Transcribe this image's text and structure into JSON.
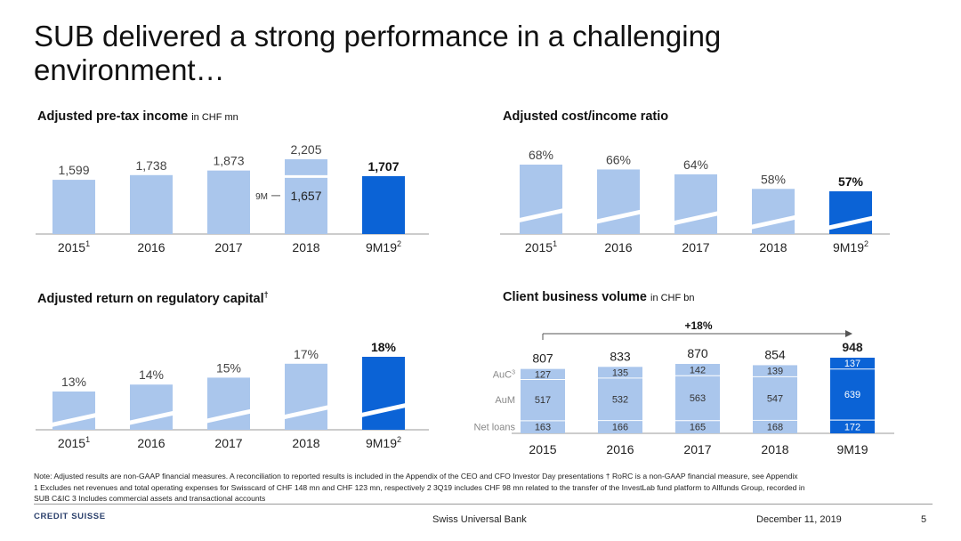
{
  "title": "SUB delivered a strong performance in a challenging environment…",
  "chart_data": [
    {
      "type": "bar",
      "title": "Adjusted pre-tax income",
      "unit": "in CHF mn",
      "categories": [
        "2015",
        "2016",
        "2017",
        "2018",
        "9M19"
      ],
      "category_superscripts": [
        "1",
        "",
        "",
        "",
        "2"
      ],
      "values": [
        1599,
        1738,
        1873,
        2205,
        1707
      ],
      "value_labels": [
        "1,599",
        "1,738",
        "1,873",
        "2,205",
        "1,707"
      ],
      "inner_marker": {
        "category": "2018",
        "label": "9M",
        "value": 1657,
        "value_label": "1,657"
      },
      "highlight_index": 4,
      "colors": {
        "bar": "#aac6ec",
        "highlight": "#0b63d6"
      }
    },
    {
      "type": "bar",
      "title": "Adjusted cost/income ratio",
      "categories": [
        "2015",
        "2016",
        "2017",
        "2018",
        "9M19"
      ],
      "category_superscripts": [
        "1",
        "",
        "",
        "",
        "2"
      ],
      "values": [
        68,
        66,
        64,
        58,
        57
      ],
      "value_labels": [
        "68%",
        "66%",
        "64%",
        "58%",
        "57%"
      ],
      "axis_break": true,
      "highlight_index": 4,
      "colors": {
        "bar": "#aac6ec",
        "highlight": "#0b63d6"
      }
    },
    {
      "type": "bar",
      "title": "Adjusted return on regulatory capital",
      "title_superscript": "†",
      "categories": [
        "2015",
        "2016",
        "2017",
        "2018",
        "9M19"
      ],
      "category_superscripts": [
        "1",
        "",
        "",
        "",
        "2"
      ],
      "values": [
        13,
        14,
        15,
        17,
        18
      ],
      "value_labels": [
        "13%",
        "14%",
        "15%",
        "17%",
        "18%"
      ],
      "axis_break": true,
      "highlight_index": 4,
      "colors": {
        "bar": "#aac6ec",
        "highlight": "#0b63d6"
      }
    },
    {
      "type": "bar",
      "stacked": true,
      "title": "Client business volume",
      "unit": "in CHF bn",
      "categories": [
        "2015",
        "2016",
        "2017",
        "2018",
        "9M19"
      ],
      "series": [
        {
          "name": "Net loans",
          "values": [
            163,
            166,
            165,
            168,
            172
          ]
        },
        {
          "name": "AuM",
          "values": [
            517,
            532,
            563,
            547,
            639
          ]
        },
        {
          "name": "AuC",
          "name_superscript": "3",
          "values": [
            127,
            135,
            142,
            139,
            137
          ]
        }
      ],
      "totals": [
        807,
        833,
        870,
        854,
        948
      ],
      "growth_label": "+18%",
      "highlight_index": 4,
      "colors": {
        "bar": "#aac6ec",
        "highlight": "#0b63d6"
      }
    }
  ],
  "notes": [
    "Note: Adjusted results are non-GAAP financial measures. A reconciliation to reported results is included in the Appendix of the CEO and CFO Investor Day presentations     † RoRC is a non-GAAP financial measure, see Appendix",
    "1 Excludes net revenues and total operating expenses for Swisscard of CHF 148 mn and CHF 123 mn, respectively     2 3Q19 includes CHF 98 mn related to the transfer of the InvestLab fund platform to Allfunds Group, recorded in",
    "SUB C&IC     3 Includes commercial assets and transactional accounts"
  ],
  "footer": {
    "logo": "CREDIT SUISSE",
    "center": "Swiss Universal Bank",
    "date": "December 11, 2019",
    "page": "5"
  }
}
